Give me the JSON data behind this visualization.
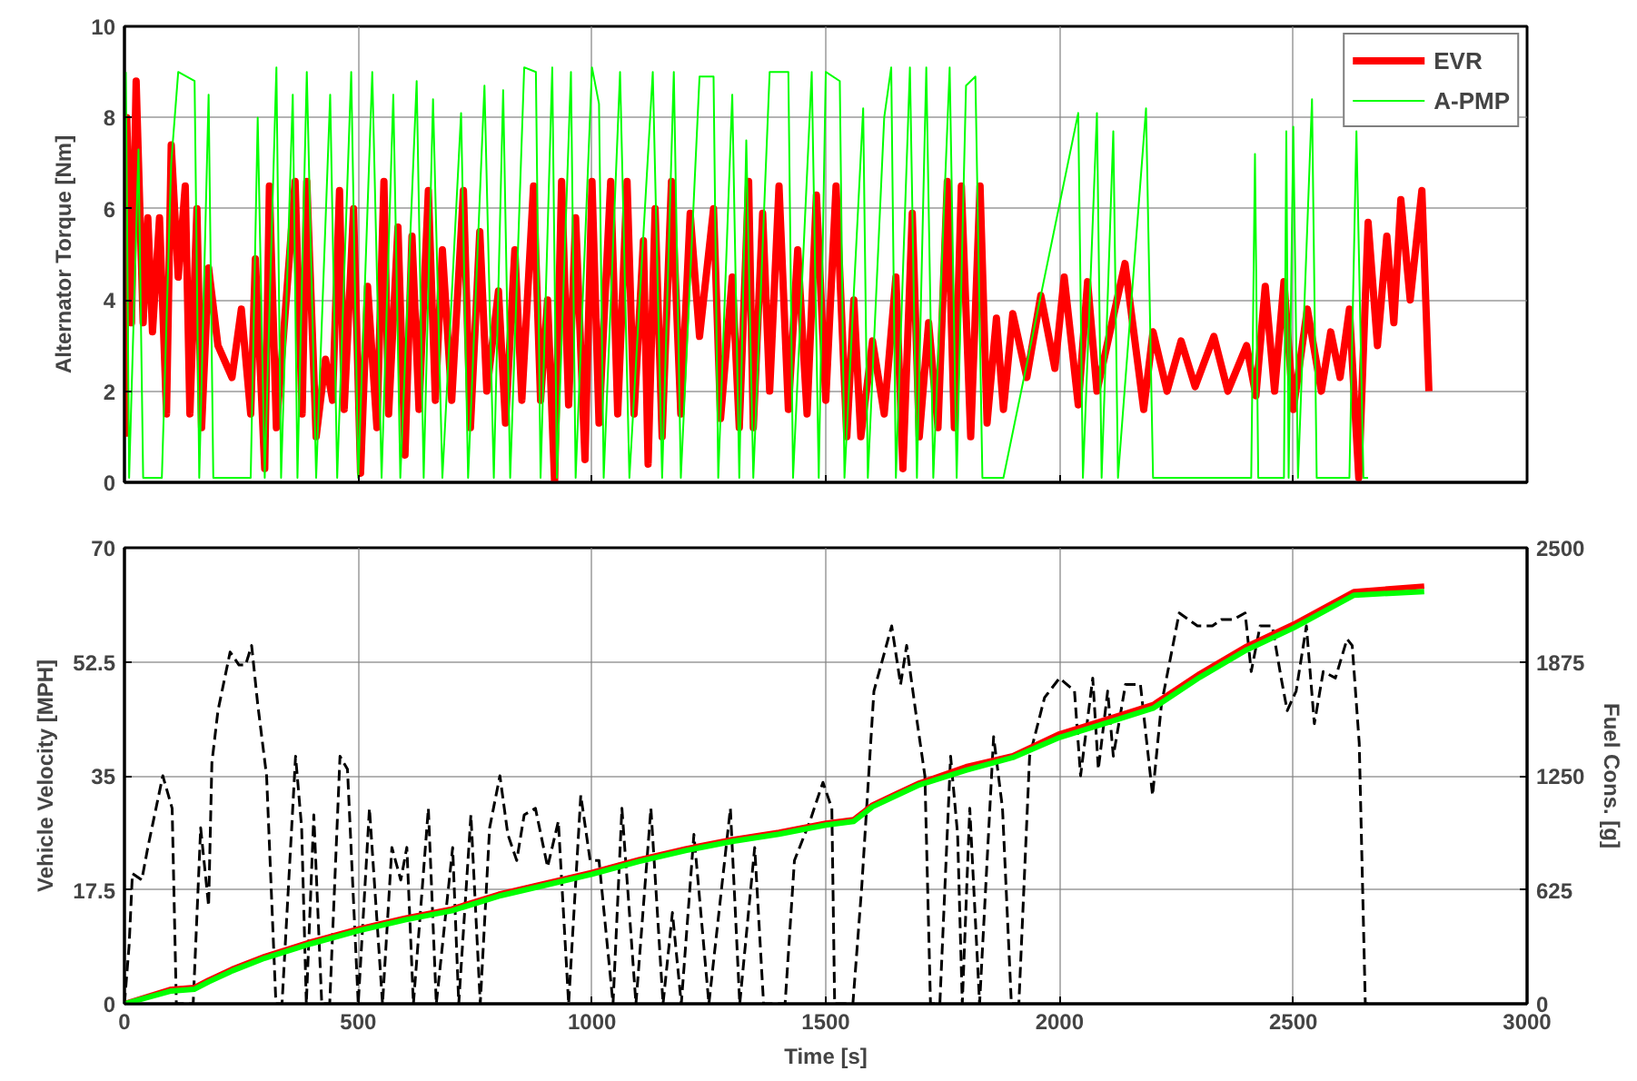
{
  "chart_data": [
    {
      "type": "line",
      "ylabel": "Alternator Torque [Nm]",
      "xlim": [
        0,
        3000
      ],
      "xticks": [
        0,
        500,
        1000,
        1500,
        2000,
        2500,
        3000
      ],
      "tick_labels": "y",
      "ylim": [
        0,
        10
      ],
      "yticks": [
        0,
        2,
        4,
        6,
        8,
        10
      ],
      "grid": true,
      "legend": "top right",
      "series": [
        {
          "name": "EVR",
          "color": "#ff0000",
          "x": [
            0,
            5,
            15,
            25,
            40,
            50,
            60,
            75,
            90,
            100,
            115,
            130,
            140,
            155,
            165,
            180,
            200,
            230,
            250,
            270,
            280,
            300,
            310,
            325,
            340,
            365,
            380,
            390,
            410,
            430,
            445,
            460,
            470,
            490,
            505,
            520,
            540,
            555,
            565,
            585,
            600,
            615,
            630,
            650,
            665,
            680,
            700,
            725,
            740,
            760,
            775,
            800,
            815,
            835,
            850,
            875,
            890,
            905,
            920,
            935,
            950,
            965,
            985,
            1000,
            1015,
            1040,
            1055,
            1075,
            1090,
            1110,
            1120,
            1135,
            1150,
            1170,
            1190,
            1210,
            1230,
            1260,
            1275,
            1300,
            1315,
            1335,
            1345,
            1365,
            1380,
            1400,
            1420,
            1440,
            1460,
            1480,
            1500,
            1522,
            1545,
            1560,
            1575,
            1600,
            1625,
            1650,
            1665,
            1685,
            1700,
            1720,
            1740,
            1760,
            1775,
            1790,
            1810,
            1830,
            1845,
            1865,
            1880,
            1900,
            1930,
            1960,
            1990,
            2010,
            2040,
            2060,
            2080,
            2110,
            2140,
            2165,
            2180,
            2200,
            2230,
            2260,
            2290,
            2330,
            2360,
            2400,
            2420,
            2440,
            2460,
            2480,
            2500,
            2530,
            2560,
            2580,
            2600,
            2620,
            2640,
            2660,
            2680,
            2700,
            2715,
            2730,
            2750,
            2775,
            2785,
            2790
          ],
          "values": [
            1,
            8,
            3.5,
            8.8,
            3.5,
            5.8,
            3.3,
            5.8,
            1.5,
            7.4,
            4.5,
            6.5,
            1.5,
            6,
            1.2,
            4.7,
            3,
            2.3,
            3.8,
            1.5,
            4.9,
            0.3,
            6.5,
            1.2,
            3.2,
            6.6,
            1.5,
            6.6,
            1,
            2.7,
            1.8,
            6.4,
            1.6,
            6,
            0.2,
            4.3,
            1.2,
            6.6,
            1.5,
            5.6,
            0.6,
            5.4,
            1.6,
            6.4,
            1.8,
            5.1,
            1.8,
            6.4,
            1.2,
            5.5,
            2,
            4.2,
            1.3,
            5.1,
            1.8,
            6.5,
            1.8,
            4,
            0,
            6.6,
            1.7,
            5.8,
            0.5,
            6.6,
            1.3,
            6.6,
            1.5,
            6.6,
            1.5,
            5.3,
            0.4,
            6,
            1,
            6.6,
            1.5,
            5.9,
            3.2,
            6,
            1.4,
            4.5,
            1.2,
            6.6,
            1.2,
            5.9,
            2,
            6.5,
            1.6,
            5.1,
            1.5,
            6.3,
            1.8,
            6.5,
            1,
            4,
            1,
            3.1,
            1.5,
            4.5,
            0.3,
            5.9,
            1,
            3.5,
            1.2,
            6.6,
            1.2,
            6.5,
            1,
            6.5,
            1.3,
            3.6,
            1.6,
            3.7,
            2.3,
            4.1,
            2.5,
            4.5,
            1.7,
            4.4,
            2,
            3.4,
            4.8,
            2.8,
            1.6,
            3.3,
            2,
            3.1,
            2.1,
            3.2,
            2,
            3,
            1.9,
            4.3,
            2,
            4.4,
            1.6,
            3.8,
            2,
            3.3,
            2.3,
            3.8,
            0.1,
            5.7,
            3,
            5.4,
            3.5,
            6.2,
            4,
            6.4,
            3.5,
            2
          ]
        },
        {
          "name": "A-PMP",
          "color": "#00ff00",
          "x": [
            3,
            10,
            30,
            40,
            80,
            100,
            115,
            150,
            160,
            180,
            190,
            270,
            285,
            300,
            325,
            335,
            360,
            370,
            390,
            410,
            440,
            455,
            485,
            500,
            530,
            550,
            575,
            590,
            625,
            640,
            660,
            680,
            720,
            735,
            770,
            790,
            810,
            825,
            855,
            880,
            890,
            915,
            925,
            955,
            965,
            1000,
            1015,
            1025,
            1060,
            1080,
            1130,
            1150,
            1175,
            1190,
            1230,
            1260,
            1270,
            1300,
            1315,
            1330,
            1345,
            1380,
            1420,
            1430,
            1470,
            1485,
            1500,
            1530,
            1540,
            1580,
            1590,
            1625,
            1640,
            1650,
            1680,
            1695,
            1715,
            1730,
            1765,
            1780,
            1800,
            1820,
            1835,
            1880,
            2040,
            2050,
            2080,
            2090,
            2115,
            2125,
            2185,
            2200,
            2410,
            2418,
            2425,
            2480,
            2485,
            2490,
            2500,
            2510,
            2540,
            2550,
            2620,
            2635,
            2650,
            2660
          ],
          "values": [
            9,
            0.1,
            7.3,
            0.1,
            0.1,
            7,
            9,
            8.8,
            0.1,
            8.5,
            0.1,
            0.1,
            8,
            0.1,
            9.1,
            0.1,
            8.5,
            0.1,
            9,
            0.1,
            8.5,
            0.1,
            9,
            0.1,
            9,
            0.1,
            8.5,
            0.1,
            8.8,
            0.1,
            8.4,
            0.1,
            8.1,
            0.1,
            8.7,
            0.1,
            8.6,
            0.1,
            9.1,
            9,
            0.1,
            9.1,
            0.1,
            9,
            0.1,
            9.1,
            8.3,
            0.1,
            9,
            0.1,
            9,
            0.1,
            9,
            0.1,
            8.9,
            8.9,
            0.1,
            8.5,
            0.1,
            7.5,
            0.1,
            9,
            9,
            0.1,
            9,
            0.1,
            9,
            8.8,
            0.1,
            8.2,
            0.1,
            8,
            9.1,
            0.1,
            9.1,
            0.1,
            9.1,
            0.1,
            9.1,
            0.1,
            8.7,
            8.9,
            0.1,
            0.1,
            8.1,
            0.1,
            8.1,
            0.1,
            7.7,
            0.1,
            8.2,
            0.1,
            0.1,
            7.2,
            0.1,
            0.1,
            7.7,
            0.1,
            7.8,
            0.1,
            8.4,
            0.1,
            0.1,
            7.7,
            0.1,
            0.1
          ]
        }
      ]
    },
    {
      "type": "line",
      "xlabel": "Time [s]",
      "ylabel": "Vehicle Velocity [MPH]",
      "y2label": "Fuel Cons. [g]",
      "xlim": [
        0,
        3000
      ],
      "xticks": [
        0,
        500,
        1000,
        1500,
        2000,
        2500,
        3000
      ],
      "ylim": [
        0,
        70
      ],
      "yticks": [
        0,
        17.5,
        35,
        52.5,
        70
      ],
      "y2lim": [
        0,
        2500
      ],
      "y2ticks": [
        0,
        625,
        1250,
        1875,
        2500
      ],
      "grid": true,
      "series": [
        {
          "color": "#000000",
          "line_style": "dashed",
          "x": [
            0,
            10,
            17,
            37,
            50,
            82,
            102,
            111,
            147,
            163,
            180,
            187,
            200,
            226,
            245,
            259,
            272,
            285,
            304,
            324,
            337,
            366,
            379,
            389,
            405,
            422,
            439,
            461,
            477,
            500,
            524,
            552,
            572,
            591,
            604,
            618,
            650,
            667,
            702,
            715,
            741,
            761,
            781,
            803,
            820,
            839,
            855,
            879,
            905,
            928,
            950,
            976,
            996,
            1015,
            1045,
            1064,
            1094,
            1126,
            1152,
            1172,
            1191,
            1218,
            1250,
            1296,
            1316,
            1348,
            1367,
            1413,
            1433,
            1466,
            1494,
            1513,
            1519,
            1558,
            1577,
            1603,
            1641,
            1660,
            1673,
            1692,
            1712,
            1724,
            1744,
            1767,
            1782,
            1792,
            1808,
            1829,
            1859,
            1878,
            1897,
            1913,
            1936,
            1968,
            2000,
            2032,
            2045,
            2071,
            2083,
            2103,
            2115,
            2141,
            2173,
            2199,
            2218,
            2256,
            2295,
            2327,
            2346,
            2372,
            2397,
            2410,
            2429,
            2455,
            2474,
            2487,
            2506,
            2528,
            2545,
            2564,
            2590,
            2615,
            2626,
            2641,
            2654,
            2660
          ],
          "values": [
            0,
            9,
            20,
            19,
            24,
            35,
            30,
            0,
            0,
            27,
            15,
            37,
            45,
            54,
            52,
            52,
            55,
            46,
            35,
            0,
            0,
            38,
            27,
            0,
            29,
            0,
            0,
            38,
            36,
            0,
            30,
            0,
            24,
            19,
            24,
            0,
            30,
            0,
            24,
            0,
            29,
            0,
            27,
            35,
            26,
            22,
            29,
            30,
            21,
            28,
            0,
            32,
            22,
            22,
            0,
            30,
            0,
            30,
            0,
            14,
            0,
            26,
            0,
            30,
            0,
            24,
            0,
            0,
            22,
            28,
            34,
            30,
            0,
            0,
            18,
            48,
            58,
            49,
            55,
            45,
            35,
            0,
            0,
            38,
            26,
            0,
            30,
            0,
            41,
            30,
            0,
            0,
            38,
            47,
            50,
            48,
            35,
            50,
            36,
            48,
            38,
            49,
            49,
            32,
            46,
            60,
            58,
            58,
            59,
            59,
            60,
            51,
            58,
            58,
            50,
            45,
            48,
            58,
            43,
            51,
            50,
            56,
            55,
            40,
            0,
            0
          ]
        },
        {
          "axis": "y2",
          "color": "#ff0000",
          "x": [
            0,
            100,
            150,
            180,
            230,
            300,
            400,
            500,
            600,
            700,
            800,
            900,
            1000,
            1100,
            1200,
            1300,
            1400,
            1500,
            1560,
            1600,
            1650,
            1700,
            1800,
            1900,
            2000,
            2100,
            2200,
            2300,
            2400,
            2500,
            2630,
            2780
          ],
          "values": [
            0,
            80,
            90,
            130,
            190,
            260,
            340,
            410,
            470,
            520,
            600,
            660,
            720,
            790,
            850,
            900,
            940,
            990,
            1010,
            1090,
            1150,
            1210,
            1300,
            1360,
            1480,
            1560,
            1640,
            1810,
            1960,
            2080,
            2260,
            2290
          ]
        },
        {
          "axis": "y2",
          "color": "#00ff00",
          "x": [
            0,
            100,
            150,
            180,
            230,
            300,
            400,
            500,
            600,
            700,
            800,
            900,
            1000,
            1100,
            1200,
            1300,
            1400,
            1500,
            1560,
            1600,
            1650,
            1700,
            1800,
            1900,
            2000,
            2100,
            2200,
            2300,
            2400,
            2500,
            2630,
            2780
          ],
          "values": [
            0,
            70,
            80,
            120,
            180,
            250,
            330,
            400,
            460,
            510,
            590,
            650,
            710,
            780,
            840,
            890,
            930,
            980,
            1000,
            1080,
            1140,
            1200,
            1280,
            1350,
            1460,
            1540,
            1620,
            1790,
            1940,
            2060,
            2240,
            2260
          ]
        }
      ]
    }
  ]
}
